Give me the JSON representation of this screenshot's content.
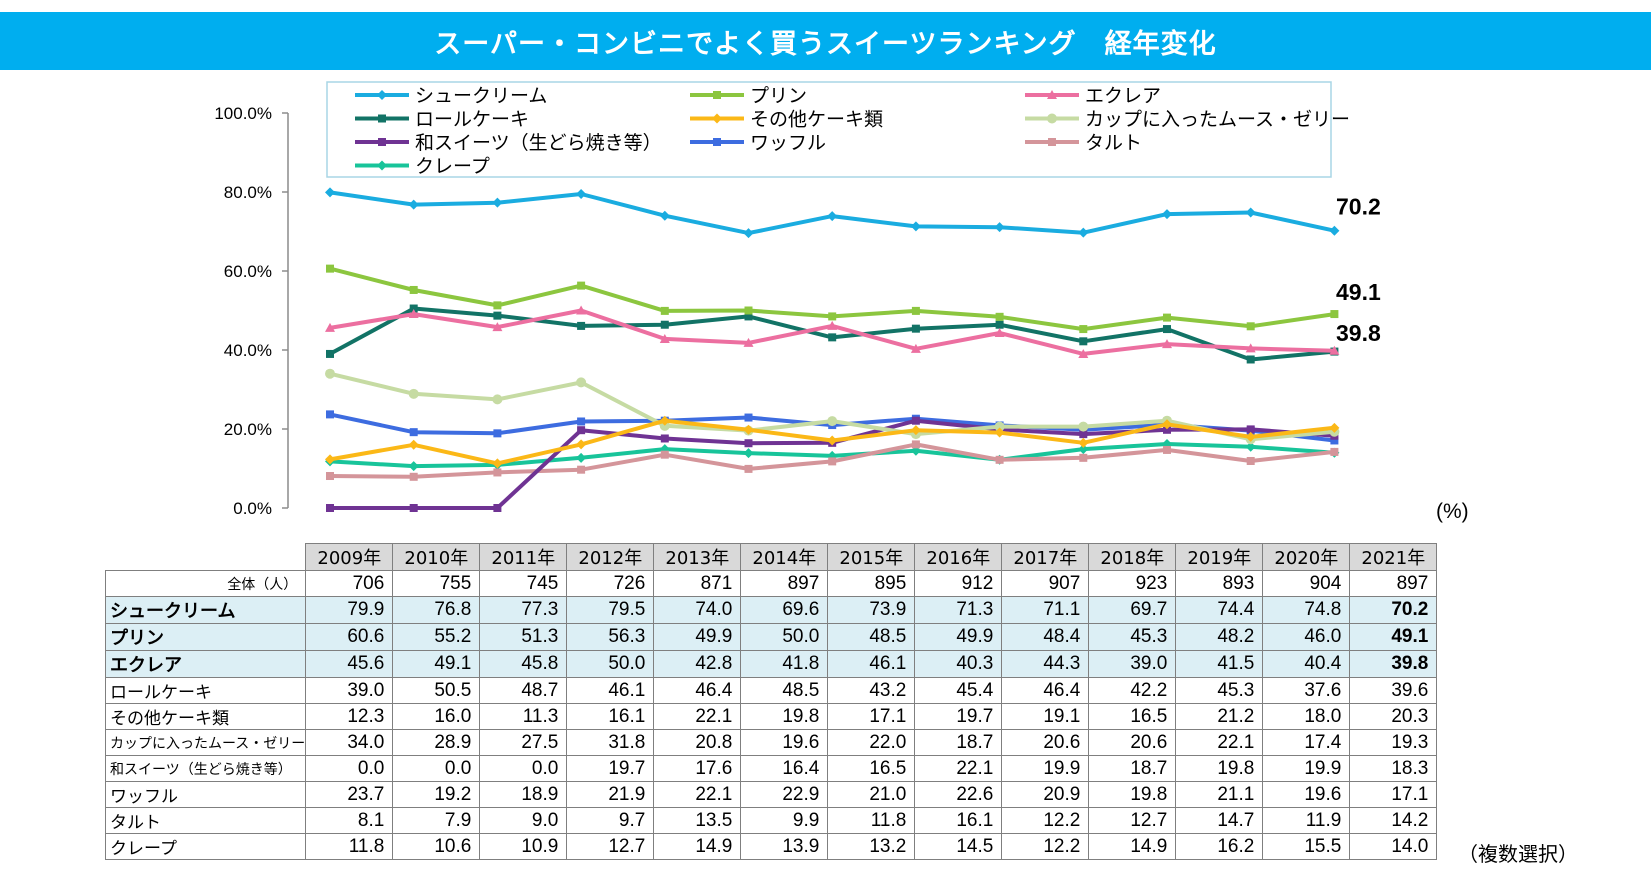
{
  "title": "スーパー・コンビニでよく買うスイーツランキング　経年変化",
  "unit_label": "(%)",
  "note": "（複数選択）",
  "table": {
    "total_label": "全体（人）",
    "totals": [
      706,
      755,
      745,
      726,
      871,
      897,
      895,
      912,
      907,
      923,
      893,
      904,
      897
    ]
  },
  "chart_data": {
    "type": "line",
    "title": "スーパー・コンビニでよく買うスイーツランキング　経年変化",
    "x": [
      "2009年",
      "2010年",
      "2011年",
      "2012年",
      "2013年",
      "2014年",
      "2015年",
      "2016年",
      "2017年",
      "2018年",
      "2019年",
      "2020年",
      "2021年"
    ],
    "ylim": [
      0,
      100
    ],
    "yticks": [
      "0.0%",
      "20.0%",
      "40.0%",
      "60.0%",
      "80.0%",
      "100.0%"
    ],
    "yunit": "(%)",
    "legend": "top",
    "end_labels": [
      "70.2",
      "49.1",
      "39.8"
    ],
    "series": [
      {
        "name": "シュークリーム",
        "color": "#1aace0",
        "marker": "diamond",
        "highlight": true,
        "values": [
          79.9,
          76.8,
          77.3,
          79.5,
          74.0,
          69.6,
          73.9,
          71.3,
          71.1,
          69.7,
          74.4,
          74.8,
          70.2
        ]
      },
      {
        "name": "プリン",
        "color": "#8cc63f",
        "marker": "square",
        "highlight": true,
        "values": [
          60.6,
          55.2,
          51.3,
          56.3,
          49.9,
          50.0,
          48.5,
          49.9,
          48.4,
          45.3,
          48.2,
          46.0,
          49.1
        ]
      },
      {
        "name": "エクレア",
        "color": "#ec6fa0",
        "marker": "triangle",
        "highlight": true,
        "values": [
          45.6,
          49.1,
          45.8,
          50.0,
          42.8,
          41.8,
          46.1,
          40.3,
          44.3,
          39.0,
          41.5,
          40.4,
          39.8
        ]
      },
      {
        "name": "ロールケーキ",
        "color": "#127366",
        "marker": "square",
        "highlight": false,
        "values": [
          39.0,
          50.5,
          48.7,
          46.1,
          46.4,
          48.5,
          43.2,
          45.4,
          46.4,
          42.2,
          45.3,
          37.6,
          39.6
        ]
      },
      {
        "name": "その他ケーキ類",
        "color": "#fbb817",
        "marker": "diamond",
        "highlight": false,
        "values": [
          12.3,
          16.0,
          11.3,
          16.1,
          22.1,
          19.8,
          17.1,
          19.7,
          19.1,
          16.5,
          21.2,
          18.0,
          20.3
        ]
      },
      {
        "name": "カップに入ったムース・ゼリー",
        "color": "#c6dba3",
        "marker": "circle",
        "highlight": false,
        "values": [
          34.0,
          28.9,
          27.5,
          31.8,
          20.8,
          19.6,
          22.0,
          18.7,
          20.6,
          20.6,
          22.1,
          17.4,
          19.3
        ]
      },
      {
        "name": "和スイーツ（生どら焼き等）",
        "color": "#6f3393",
        "marker": "square",
        "highlight": false,
        "values": [
          0.0,
          0.0,
          0.0,
          19.7,
          17.6,
          16.4,
          16.5,
          22.1,
          19.9,
          18.7,
          19.8,
          19.9,
          18.3
        ]
      },
      {
        "name": "ワッフル",
        "color": "#3d6ce0",
        "marker": "square",
        "highlight": false,
        "values": [
          23.7,
          19.2,
          18.9,
          21.9,
          22.1,
          22.9,
          21.0,
          22.6,
          20.9,
          19.8,
          21.1,
          19.6,
          17.1
        ]
      },
      {
        "name": "タルト",
        "color": "#d4959a",
        "marker": "square",
        "highlight": false,
        "values": [
          8.1,
          7.9,
          9.0,
          9.7,
          13.5,
          9.9,
          11.8,
          16.1,
          12.2,
          12.7,
          14.7,
          11.9,
          14.2
        ]
      },
      {
        "name": "クレープ",
        "color": "#18c49a",
        "marker": "diamond",
        "highlight": false,
        "values": [
          11.8,
          10.6,
          10.9,
          12.7,
          14.9,
          13.9,
          13.2,
          14.5,
          12.2,
          14.9,
          16.2,
          15.5,
          14.0
        ]
      }
    ]
  }
}
